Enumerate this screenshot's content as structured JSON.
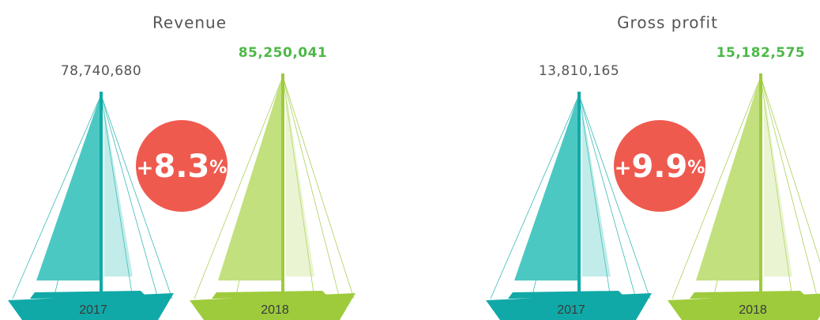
{
  "panels": [
    {
      "title": "Revenue",
      "items": [
        {
          "value": "78,740,680",
          "year": "2017"
        },
        {
          "value": "85,250,041",
          "year": "2018"
        }
      ],
      "change": {
        "sign": "+",
        "value": "8.3",
        "unit": "%"
      }
    },
    {
      "title": "Gross profit",
      "items": [
        {
          "value": "13,810,165",
          "year": "2017"
        },
        {
          "value": "15,182,575",
          "year": "2018"
        }
      ],
      "change": {
        "sign": "+",
        "value": "9.9",
        "unit": "%"
      }
    }
  ]
}
